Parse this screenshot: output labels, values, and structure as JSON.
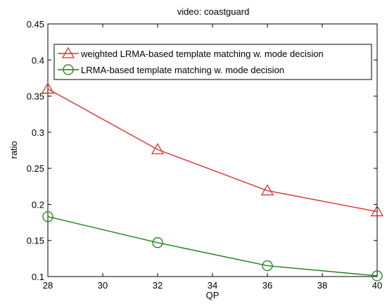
{
  "chart_data": {
    "type": "line",
    "title": "video: coastguard",
    "xlabel": "QP",
    "ylabel": "ratio",
    "xlim": [
      28,
      40
    ],
    "ylim": [
      0.1,
      0.45
    ],
    "x_ticks": [
      "28",
      "30",
      "32",
      "34",
      "36",
      "38",
      "40"
    ],
    "y_ticks": [
      "0.1",
      "0.15",
      "0.2",
      "0.25",
      "0.3",
      "0.35",
      "0.4",
      "0.45"
    ],
    "grid": false,
    "legend_position": "top",
    "x": [
      28,
      32,
      36,
      40
    ],
    "series": [
      {
        "name": "weighted LRMA-based template matching w. mode decision",
        "marker": "triangle",
        "color": "#e03030",
        "values": [
          0.36,
          0.276,
          0.219,
          0.19
        ]
      },
      {
        "name": "LRMA-based template matching w. mode decision",
        "marker": "circle",
        "color": "#1a7f1a",
        "values": [
          0.183,
          0.147,
          0.115,
          0.101
        ]
      }
    ]
  }
}
